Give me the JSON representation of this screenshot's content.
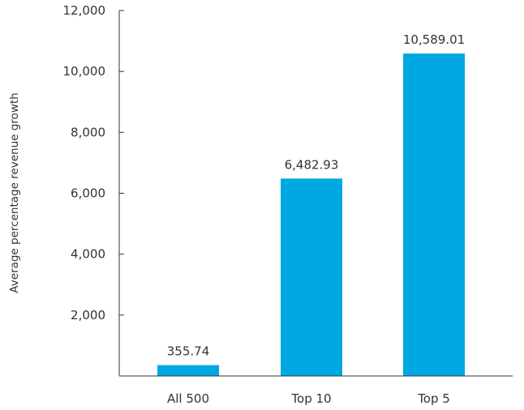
{
  "chart_data": {
    "type": "bar",
    "categories": [
      "All 500",
      "Top 10",
      "Top 5"
    ],
    "values": [
      355.74,
      6482.93,
      10589.01
    ],
    "data_labels": [
      "355.74",
      "6,482.93",
      "10,589.01"
    ],
    "title": "",
    "xlabel": "",
    "ylabel": "Average percentage revenue growth",
    "ylim": [
      0,
      12000
    ],
    "yticks": [
      2000,
      4000,
      6000,
      8000,
      10000,
      12000
    ],
    "ytick_labels": [
      "2,000",
      "4,000",
      "6,000",
      "8,000",
      "10,000",
      "12,000"
    ],
    "grid": false,
    "legend": "none",
    "bar_color": "#00a8e1",
    "axis_color": "#333333"
  }
}
